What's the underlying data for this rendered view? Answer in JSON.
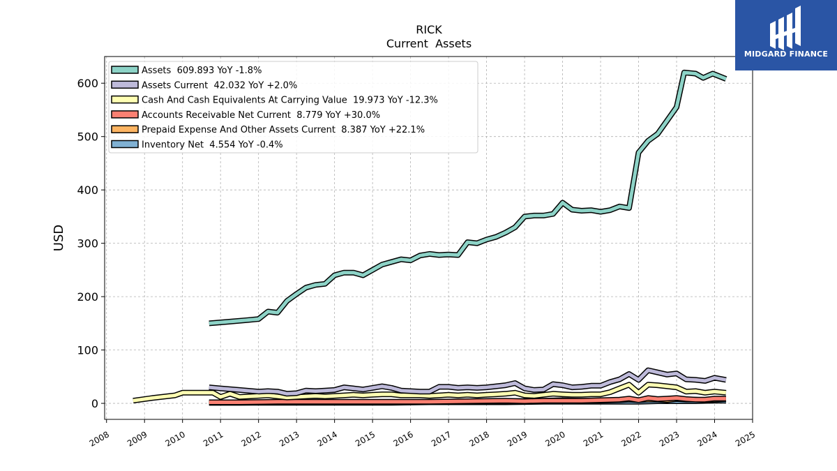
{
  "brand": {
    "name": "MIDGARD FINANCE",
    "color": "#2a55a5"
  },
  "chart_data": {
    "type": "line",
    "title": "RICK",
    "subtitle": "Current  Assets",
    "xlabel": "",
    "ylabel": "USD",
    "xlim": [
      2007.95,
      2025.0
    ],
    "ylim": [
      -30,
      650
    ],
    "x_ticks": [
      "2008",
      "2009",
      "2010",
      "2011",
      "2012",
      "2013",
      "2014",
      "2015",
      "2016",
      "2017",
      "2018",
      "2019",
      "2020",
      "2021",
      "2022",
      "2023",
      "2024",
      "2025"
    ],
    "y_ticks": [
      "0",
      "100",
      "200",
      "300",
      "400",
      "500",
      "600"
    ],
    "grid": true,
    "legend_position": "top-left",
    "series": [
      {
        "name": "Assets  609.893 YoY -1.8%",
        "color": "#8dd3c7",
        "points": [
          [
            2010.7,
            150
          ],
          [
            2011.2,
            153
          ],
          [
            2011.7,
            156
          ],
          [
            2012.0,
            158
          ],
          [
            2012.25,
            172
          ],
          [
            2012.5,
            170
          ],
          [
            2012.75,
            192
          ],
          [
            2013.0,
            205
          ],
          [
            2013.25,
            217
          ],
          [
            2013.5,
            222
          ],
          [
            2013.75,
            224
          ],
          [
            2014.0,
            240
          ],
          [
            2014.25,
            245
          ],
          [
            2014.5,
            245
          ],
          [
            2014.75,
            240
          ],
          [
            2015.0,
            250
          ],
          [
            2015.25,
            260
          ],
          [
            2015.5,
            265
          ],
          [
            2015.75,
            270
          ],
          [
            2016.0,
            268
          ],
          [
            2016.25,
            277
          ],
          [
            2016.5,
            280
          ],
          [
            2016.75,
            278
          ],
          [
            2017.0,
            279
          ],
          [
            2017.25,
            278
          ],
          [
            2017.5,
            302
          ],
          [
            2017.75,
            300
          ],
          [
            2018.0,
            307
          ],
          [
            2018.25,
            312
          ],
          [
            2018.5,
            320
          ],
          [
            2018.75,
            330
          ],
          [
            2019.0,
            350
          ],
          [
            2019.25,
            352
          ],
          [
            2019.5,
            352
          ],
          [
            2019.75,
            355
          ],
          [
            2020.0,
            376
          ],
          [
            2020.25,
            363
          ],
          [
            2020.5,
            361
          ],
          [
            2020.75,
            362
          ],
          [
            2021.0,
            359
          ],
          [
            2021.25,
            362
          ],
          [
            2021.5,
            369
          ],
          [
            2021.75,
            366
          ],
          [
            2022.0,
            470
          ],
          [
            2022.25,
            492
          ],
          [
            2022.5,
            505
          ],
          [
            2022.75,
            530
          ],
          [
            2023.0,
            555
          ],
          [
            2023.2,
            620
          ],
          [
            2023.5,
            618
          ],
          [
            2023.7,
            610
          ],
          [
            2023.95,
            618
          ],
          [
            2024.3,
            608
          ]
        ]
      },
      {
        "name": "Assets Current  42.032 YoY +2.0%",
        "color": "#bebada",
        "points": [
          [
            2010.7,
            30
          ],
          [
            2011.0,
            28
          ],
          [
            2011.5,
            25
          ],
          [
            2012.0,
            22
          ],
          [
            2012.25,
            23
          ],
          [
            2012.5,
            22
          ],
          [
            2012.75,
            18
          ],
          [
            2013.0,
            19
          ],
          [
            2013.25,
            24
          ],
          [
            2013.5,
            23
          ],
          [
            2013.75,
            24
          ],
          [
            2014.0,
            25
          ],
          [
            2014.25,
            30
          ],
          [
            2014.5,
            28
          ],
          [
            2014.75,
            26
          ],
          [
            2015.0,
            29
          ],
          [
            2015.25,
            32
          ],
          [
            2015.5,
            29
          ],
          [
            2015.75,
            24
          ],
          [
            2016.0,
            23
          ],
          [
            2016.25,
            22
          ],
          [
            2016.5,
            22
          ],
          [
            2016.75,
            31
          ],
          [
            2017.0,
            31
          ],
          [
            2017.25,
            29
          ],
          [
            2017.5,
            30
          ],
          [
            2017.75,
            29
          ],
          [
            2018.0,
            30
          ],
          [
            2018.25,
            32
          ],
          [
            2018.5,
            34
          ],
          [
            2018.75,
            38
          ],
          [
            2019.0,
            28
          ],
          [
            2019.25,
            25
          ],
          [
            2019.5,
            26
          ],
          [
            2019.75,
            36
          ],
          [
            2020.0,
            34
          ],
          [
            2020.25,
            30
          ],
          [
            2020.5,
            31
          ],
          [
            2020.75,
            33
          ],
          [
            2021.0,
            33
          ],
          [
            2021.25,
            40
          ],
          [
            2021.5,
            45
          ],
          [
            2021.75,
            55
          ],
          [
            2022.0,
            44
          ],
          [
            2022.25,
            62
          ],
          [
            2022.5,
            58
          ],
          [
            2022.75,
            54
          ],
          [
            2023.0,
            56
          ],
          [
            2023.25,
            45
          ],
          [
            2023.5,
            44
          ],
          [
            2023.75,
            42
          ],
          [
            2024.0,
            48
          ],
          [
            2024.3,
            44
          ]
        ]
      },
      {
        "name": "Cash And Cash Equivalents At Carrying Value  19.973 YoY -12.3%",
        "color": "#ffffb3",
        "points": [
          [
            2008.7,
            5
          ],
          [
            2009.2,
            10
          ],
          [
            2009.8,
            15
          ],
          [
            2010.0,
            20
          ],
          [
            2010.3,
            20
          ],
          [
            2010.8,
            20
          ],
          [
            2011.0,
            12
          ],
          [
            2011.25,
            18
          ],
          [
            2011.5,
            12
          ],
          [
            2011.75,
            13
          ],
          [
            2012.0,
            14
          ],
          [
            2012.25,
            15
          ],
          [
            2012.5,
            13
          ],
          [
            2012.75,
            11
          ],
          [
            2013.0,
            12
          ],
          [
            2013.25,
            13
          ],
          [
            2013.5,
            14
          ],
          [
            2013.75,
            13
          ],
          [
            2014.0,
            14
          ],
          [
            2014.25,
            15
          ],
          [
            2014.5,
            16
          ],
          [
            2014.75,
            15
          ],
          [
            2015.0,
            16
          ],
          [
            2015.25,
            17
          ],
          [
            2015.5,
            17
          ],
          [
            2015.75,
            15
          ],
          [
            2016.0,
            15
          ],
          [
            2016.25,
            15
          ],
          [
            2016.5,
            14
          ],
          [
            2016.75,
            15
          ],
          [
            2017.0,
            16
          ],
          [
            2017.25,
            15
          ],
          [
            2017.5,
            16
          ],
          [
            2017.75,
            15
          ],
          [
            2018.0,
            16
          ],
          [
            2018.25,
            17
          ],
          [
            2018.5,
            18
          ],
          [
            2018.75,
            20
          ],
          [
            2019.0,
            15
          ],
          [
            2019.25,
            14
          ],
          [
            2019.5,
            16
          ],
          [
            2019.75,
            18
          ],
          [
            2020.0,
            17
          ],
          [
            2020.25,
            16
          ],
          [
            2020.5,
            16
          ],
          [
            2020.75,
            17
          ],
          [
            2021.0,
            17
          ],
          [
            2021.25,
            21
          ],
          [
            2021.5,
            28
          ],
          [
            2021.75,
            35
          ],
          [
            2022.0,
            20
          ],
          [
            2022.25,
            35
          ],
          [
            2022.5,
            34
          ],
          [
            2022.75,
            32
          ],
          [
            2023.0,
            30
          ],
          [
            2023.25,
            22
          ],
          [
            2023.5,
            23
          ],
          [
            2023.75,
            20
          ],
          [
            2024.0,
            22
          ],
          [
            2024.3,
            20
          ]
        ]
      },
      {
        "name": "Accounts Receivable Net Current  8.779 YoY +30.0%",
        "color": "#fb8072",
        "points": [
          [
            2010.7,
            2
          ],
          [
            2011.5,
            2
          ],
          [
            2012.5,
            3
          ],
          [
            2013.5,
            3
          ],
          [
            2014.5,
            3
          ],
          [
            2015.5,
            3
          ],
          [
            2016.5,
            3
          ],
          [
            2017.5,
            4
          ],
          [
            2018.5,
            5
          ],
          [
            2019.0,
            4
          ],
          [
            2019.5,
            5
          ],
          [
            2020.0,
            5
          ],
          [
            2020.5,
            5
          ],
          [
            2021.0,
            6
          ],
          [
            2021.5,
            7
          ],
          [
            2021.75,
            9
          ],
          [
            2022.0,
            6
          ],
          [
            2022.25,
            10
          ],
          [
            2022.5,
            8
          ],
          [
            2022.75,
            9
          ],
          [
            2023.0,
            10
          ],
          [
            2023.25,
            8
          ],
          [
            2023.5,
            7
          ],
          [
            2023.75,
            7
          ],
          [
            2024.0,
            9
          ],
          [
            2024.3,
            9
          ]
        ]
      },
      {
        "name": "Prepaid Expense And Other Assets Current  8.387 YoY +22.1%",
        "color": "#fdb462",
        "points": [
          [
            2010.7,
            1
          ],
          [
            2011.5,
            1
          ],
          [
            2012.5,
            2
          ],
          [
            2013.5,
            2
          ],
          [
            2014.5,
            2
          ],
          [
            2015.5,
            2
          ],
          [
            2016.5,
            3
          ],
          [
            2017.5,
            3
          ],
          [
            2018.5,
            4
          ],
          [
            2019.5,
            5
          ],
          [
            2020.0,
            6
          ],
          [
            2020.5,
            5
          ],
          [
            2021.0,
            5
          ],
          [
            2021.5,
            6
          ],
          [
            2021.75,
            7
          ],
          [
            2022.0,
            6
          ],
          [
            2022.25,
            7
          ],
          [
            2022.5,
            7
          ],
          [
            2022.75,
            6
          ],
          [
            2023.0,
            8
          ],
          [
            2023.25,
            7
          ],
          [
            2023.5,
            7
          ],
          [
            2023.75,
            6
          ],
          [
            2024.0,
            7
          ],
          [
            2024.3,
            8
          ]
        ]
      },
      {
        "name": "Inventory Net  4.554 YoY -0.4%",
        "color": "#80b1d3",
        "points": [
          [
            2010.7,
            1
          ],
          [
            2011.5,
            1
          ],
          [
            2012.5,
            1
          ],
          [
            2013.5,
            1
          ],
          [
            2014.5,
            1
          ],
          [
            2015.5,
            1
          ],
          [
            2016.5,
            2
          ],
          [
            2017.5,
            2
          ],
          [
            2018.5,
            2
          ],
          [
            2019.5,
            3
          ],
          [
            2020.5,
            3
          ],
          [
            2021.5,
            3
          ],
          [
            2022.0,
            3
          ],
          [
            2022.5,
            4
          ],
          [
            2023.0,
            4
          ],
          [
            2023.5,
            4
          ],
          [
            2024.0,
            5
          ],
          [
            2024.3,
            5
          ]
        ]
      }
    ]
  }
}
